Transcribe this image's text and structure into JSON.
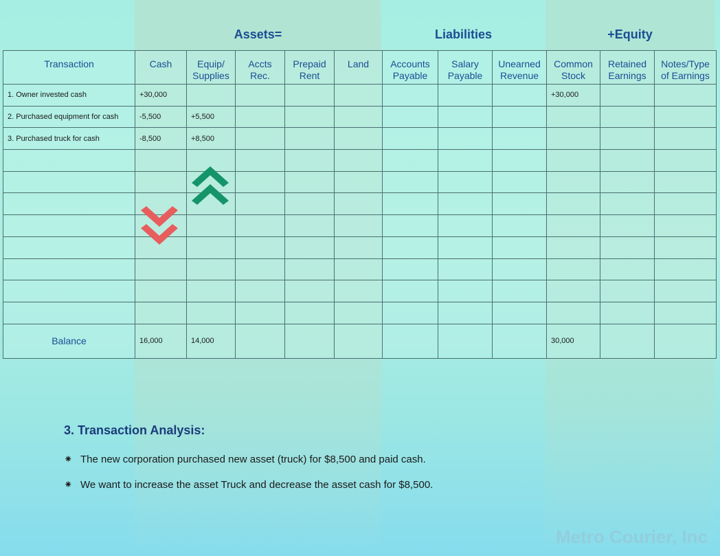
{
  "groups": {
    "assets": "Assets=",
    "liabilities": "Liabilities",
    "equity": "+Equity"
  },
  "columns": [
    {
      "line1": "Transaction",
      "line2": ""
    },
    {
      "line1": "Cash",
      "line2": ""
    },
    {
      "line1": "Equip/",
      "line2": "Supplies"
    },
    {
      "line1": "Accts",
      "line2": "Rec."
    },
    {
      "line1": "Prepaid",
      "line2": "Rent"
    },
    {
      "line1": "Land",
      "line2": ""
    },
    {
      "line1": "Accounts",
      "line2": "Payable"
    },
    {
      "line1": "Salary",
      "line2": "Payable"
    },
    {
      "line1": "Unearned",
      "line2": "Revenue"
    },
    {
      "line1": "Common",
      "line2": "Stock"
    },
    {
      "line1": "Retained",
      "line2": "Earnings"
    },
    {
      "line1": "Notes/Type",
      "line2": "of Earnings"
    }
  ],
  "rows": [
    [
      "1. Owner invested cash",
      "+30,000",
      "",
      "",
      "",
      "",
      "",
      "",
      "",
      "+30,000",
      "",
      ""
    ],
    [
      "2. Purchased equipment for cash",
      "-5,500",
      "+5,500",
      "",
      "",
      "",
      "",
      "",
      "",
      "",
      "",
      ""
    ],
    [
      "3. Purchased truck for cash",
      "-8,500",
      "+8,500",
      "",
      "",
      "",
      "",
      "",
      "",
      "",
      "",
      ""
    ],
    [
      "",
      "",
      "",
      "",
      "",
      "",
      "",
      "",
      "",
      "",
      "",
      ""
    ],
    [
      "",
      "",
      "",
      "",
      "",
      "",
      "",
      "",
      "",
      "",
      "",
      ""
    ],
    [
      "",
      "",
      "",
      "",
      "",
      "",
      "",
      "",
      "",
      "",
      "",
      ""
    ],
    [
      "",
      "",
      "",
      "",
      "",
      "",
      "",
      "",
      "",
      "",
      "",
      ""
    ],
    [
      "",
      "",
      "",
      "",
      "",
      "",
      "",
      "",
      "",
      "",
      "",
      ""
    ],
    [
      "",
      "",
      "",
      "",
      "",
      "",
      "",
      "",
      "",
      "",
      "",
      ""
    ],
    [
      "",
      "",
      "",
      "",
      "",
      "",
      "",
      "",
      "",
      "",
      "",
      ""
    ],
    [
      "",
      "",
      "",
      "",
      "",
      "",
      "",
      "",
      "",
      "",
      "",
      ""
    ]
  ],
  "balance": [
    "Balance",
    "16,000",
    "14,000",
    "",
    "",
    "",
    "",
    "",
    "",
    "30,000",
    "",
    ""
  ],
  "indicators": {
    "increase": {
      "icon": "double-chevron-up-icon",
      "color": "#15946a"
    },
    "decrease": {
      "icon": "double-chevron-down-icon",
      "color": "#e85d5d"
    }
  },
  "analysis": {
    "title": "3. Transaction Analysis:",
    "bullet_symbol": "⁕",
    "bullets": [
      "The new corporation purchased new asset (truck) for $8,500 and paid cash.",
      "We want to increase the asset Truck and decrease the asset cash for $8,500."
    ]
  },
  "watermark": "Metro Courier, Inc"
}
